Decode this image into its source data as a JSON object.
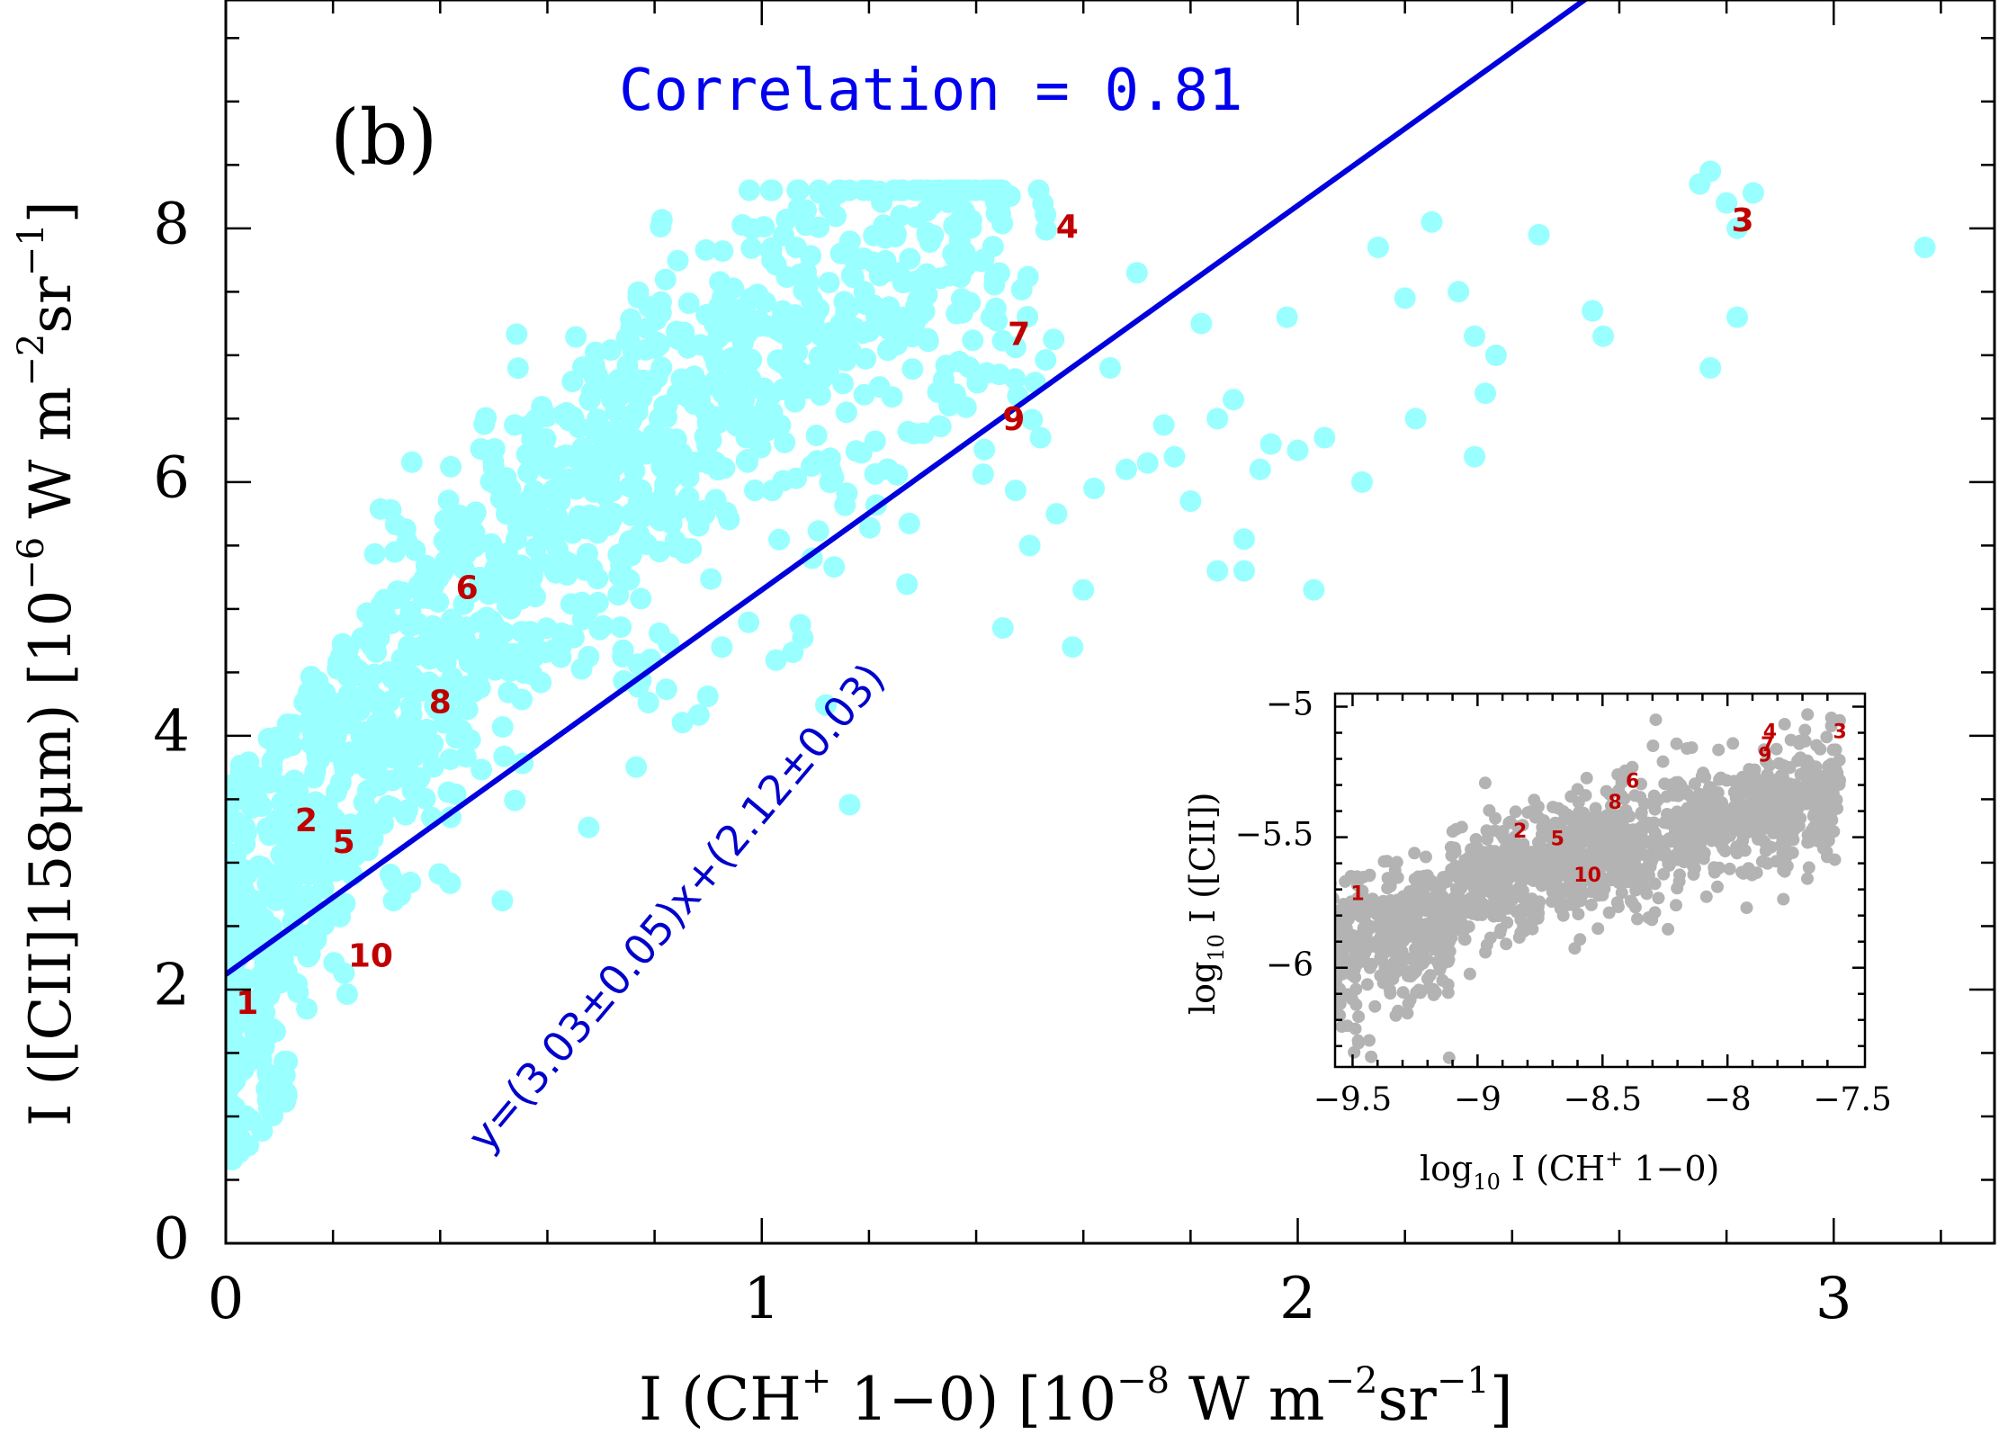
{
  "chart_data": [
    {
      "type": "scatter",
      "panel_label": "(b)",
      "xlabel": "I (CH",
      "xlabel_sup": "+",
      "xlabel_rest": " 1−0)  [10",
      "xlabel_exp": "−8",
      "xlabel_unit": " W m",
      "xlabel_unit_exp": "−2",
      "xlabel_unit2": "sr",
      "xlabel_unit2_exp": "−1",
      "xlabel_close": "]",
      "ylabel": "I ([CII]158μm) [10",
      "ylabel_exp": "−6",
      "ylabel_unit": " W m",
      "ylabel_unit_exp": "−2",
      "ylabel_unit2": "sr",
      "ylabel_unit2_exp": "−1",
      "ylabel_close": "]",
      "xlim": [
        0,
        3.3
      ],
      "ylim": [
        0,
        9.8
      ],
      "xticks": [
        0,
        1,
        2,
        3
      ],
      "xtick_labels": [
        "0",
        "1",
        "2",
        "3"
      ],
      "yticks": [
        0,
        2,
        4,
        6,
        8
      ],
      "ytick_labels": [
        "0",
        "2",
        "4",
        "6",
        "8"
      ],
      "point_color": "#99ffff",
      "correlation_text": "Correlation = 0.81",
      "fit": {
        "slope": 3.03,
        "intercept": 2.12,
        "color": "#0000dd"
      },
      "fit_equation": "y=(3.03±0.05)x+(2.12±0.03)",
      "labeled_points": [
        {
          "label": "1",
          "x": 0.04,
          "y": 1.88
        },
        {
          "label": "2",
          "x": 0.15,
          "y": 3.32
        },
        {
          "label": "3",
          "x": 2.83,
          "y": 8.05
        },
        {
          "label": "4",
          "x": 1.57,
          "y": 8.0
        },
        {
          "label": "5",
          "x": 0.22,
          "y": 3.15
        },
        {
          "label": "6",
          "x": 0.45,
          "y": 5.15
        },
        {
          "label": "7",
          "x": 1.48,
          "y": 7.15
        },
        {
          "label": "8",
          "x": 0.4,
          "y": 4.25
        },
        {
          "label": "9",
          "x": 1.47,
          "y": 6.48
        },
        {
          "label": "10",
          "x": 0.27,
          "y": 2.25
        }
      ],
      "label_color": "#c00000",
      "sparse_points": [
        [
          1.6,
          5.15
        ],
        [
          1.62,
          5.95
        ],
        [
          1.65,
          6.9
        ],
        [
          1.7,
          7.65
        ],
        [
          1.75,
          6.45
        ],
        [
          1.77,
          6.2
        ],
        [
          1.8,
          5.85
        ],
        [
          1.82,
          7.25
        ],
        [
          1.85,
          6.5
        ],
        [
          1.88,
          6.65
        ],
        [
          1.9,
          5.55
        ],
        [
          1.93,
          6.1
        ],
        [
          1.95,
          6.3
        ],
        [
          1.98,
          7.3
        ],
        [
          2.0,
          6.25
        ],
        [
          2.03,
          5.15
        ],
        [
          2.05,
          6.35
        ],
        [
          2.12,
          6.0
        ],
        [
          2.15,
          7.85
        ],
        [
          2.2,
          7.45
        ],
        [
          2.22,
          6.5
        ],
        [
          2.25,
          8.05
        ],
        [
          2.3,
          7.5
        ],
        [
          2.33,
          7.15
        ],
        [
          2.35,
          6.7
        ],
        [
          2.37,
          7.0
        ],
        [
          2.33,
          6.2
        ],
        [
          2.45,
          7.95
        ],
        [
          2.55,
          7.35
        ],
        [
          2.57,
          7.15
        ],
        [
          2.75,
          8.35
        ],
        [
          2.77,
          8.45
        ],
        [
          2.8,
          8.2
        ],
        [
          2.82,
          8.0
        ],
        [
          2.85,
          8.28
        ],
        [
          2.82,
          7.3
        ],
        [
          2.77,
          6.9
        ],
        [
          3.17,
          7.85
        ],
        [
          1.9,
          5.3
        ],
        [
          1.85,
          5.3
        ],
        [
          1.72,
          6.15
        ],
        [
          1.68,
          6.1
        ],
        [
          1.58,
          4.7
        ],
        [
          1.55,
          5.75
        ],
        [
          1.5,
          5.5
        ],
        [
          1.45,
          4.85
        ],
        [
          1.52,
          6.35
        ]
      ],
      "inset": {
        "type": "scatter",
        "point_color": "#b3b3b3",
        "xlabel": "log",
        "xlabel_sub": "10",
        "xlabel_rest": " I (CH",
        "xlabel_sup": "+",
        "xlabel_tail": " 1−0)",
        "ylabel": "log",
        "ylabel_sub": "10",
        "ylabel_rest": " I ([CII])",
        "xlim": [
          -9.57,
          -7.45
        ],
        "ylim": [
          -6.38,
          -4.95
        ],
        "xticks": [
          -9.5,
          -9,
          -8.5,
          -8,
          -7.5
        ],
        "xtick_labels": [
          "−9.5",
          "−9",
          "−8.5",
          "−8",
          "−7.5"
        ],
        "yticks": [
          -6,
          -5.5,
          -5
        ],
        "ytick_labels": [
          "−6",
          "−5.5",
          "−5"
        ],
        "labeled_points": [
          {
            "label": "1",
            "x": -9.48,
            "y": -5.72
          },
          {
            "label": "2",
            "x": -8.83,
            "y": -5.48
          },
          {
            "label": "3",
            "x": -7.55,
            "y": -5.1
          },
          {
            "label": "4",
            "x": -7.83,
            "y": -5.1
          },
          {
            "label": "5",
            "x": -8.68,
            "y": -5.51
          },
          {
            "label": "6",
            "x": -8.38,
            "y": -5.29
          },
          {
            "label": "7",
            "x": -7.84,
            "y": -5.15
          },
          {
            "label": "8",
            "x": -8.45,
            "y": -5.37
          },
          {
            "label": "9",
            "x": -7.85,
            "y": -5.19
          },
          {
            "label": "10",
            "x": -8.56,
            "y": -5.65
          }
        ]
      }
    }
  ]
}
